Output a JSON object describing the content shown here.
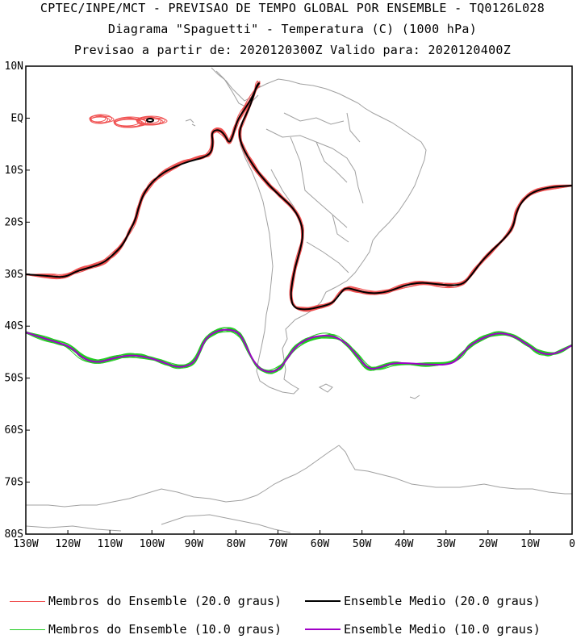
{
  "header": {
    "line1": "CPTEC/INPE/MCT - PREVISAO DE TEMPO GLOBAL POR ENSEMBLE - TQ0126L028",
    "line2": "Diagrama \"Spaguetti\" - Temperatura (C) (1000 hPa)",
    "line3": "Previsao a partir de: 2020120300Z  Valido para: 2020120400Z"
  },
  "axes": {
    "lat_labels": [
      "10N",
      "EQ",
      "10S",
      "20S",
      "30S",
      "40S",
      "50S",
      "60S",
      "70S",
      "80S"
    ],
    "lon_labels": [
      "130W",
      "120W",
      "110W",
      "100W",
      "90W",
      "80W",
      "70W",
      "60W",
      "50W",
      "40W",
      "30W",
      "20W",
      "10W",
      "0"
    ]
  },
  "legend": [
    {
      "label": "Membros do Ensemble (20.0 graus)",
      "color": "#f05050"
    },
    {
      "label": "Ensemble Medio (20.0 graus)",
      "color": "#000000"
    },
    {
      "label": "Membros do Ensemble (10.0 graus)",
      "color": "#22cc22"
    },
    {
      "label": "Ensemble Medio (10.0 graus)",
      "color": "#a000c8"
    }
  ],
  "colors": {
    "coast": "#a0a0a0",
    "member20": "#f05050",
    "mean20": "#000000",
    "member10": "#22cc22",
    "mean10": "#a000c8"
  }
}
